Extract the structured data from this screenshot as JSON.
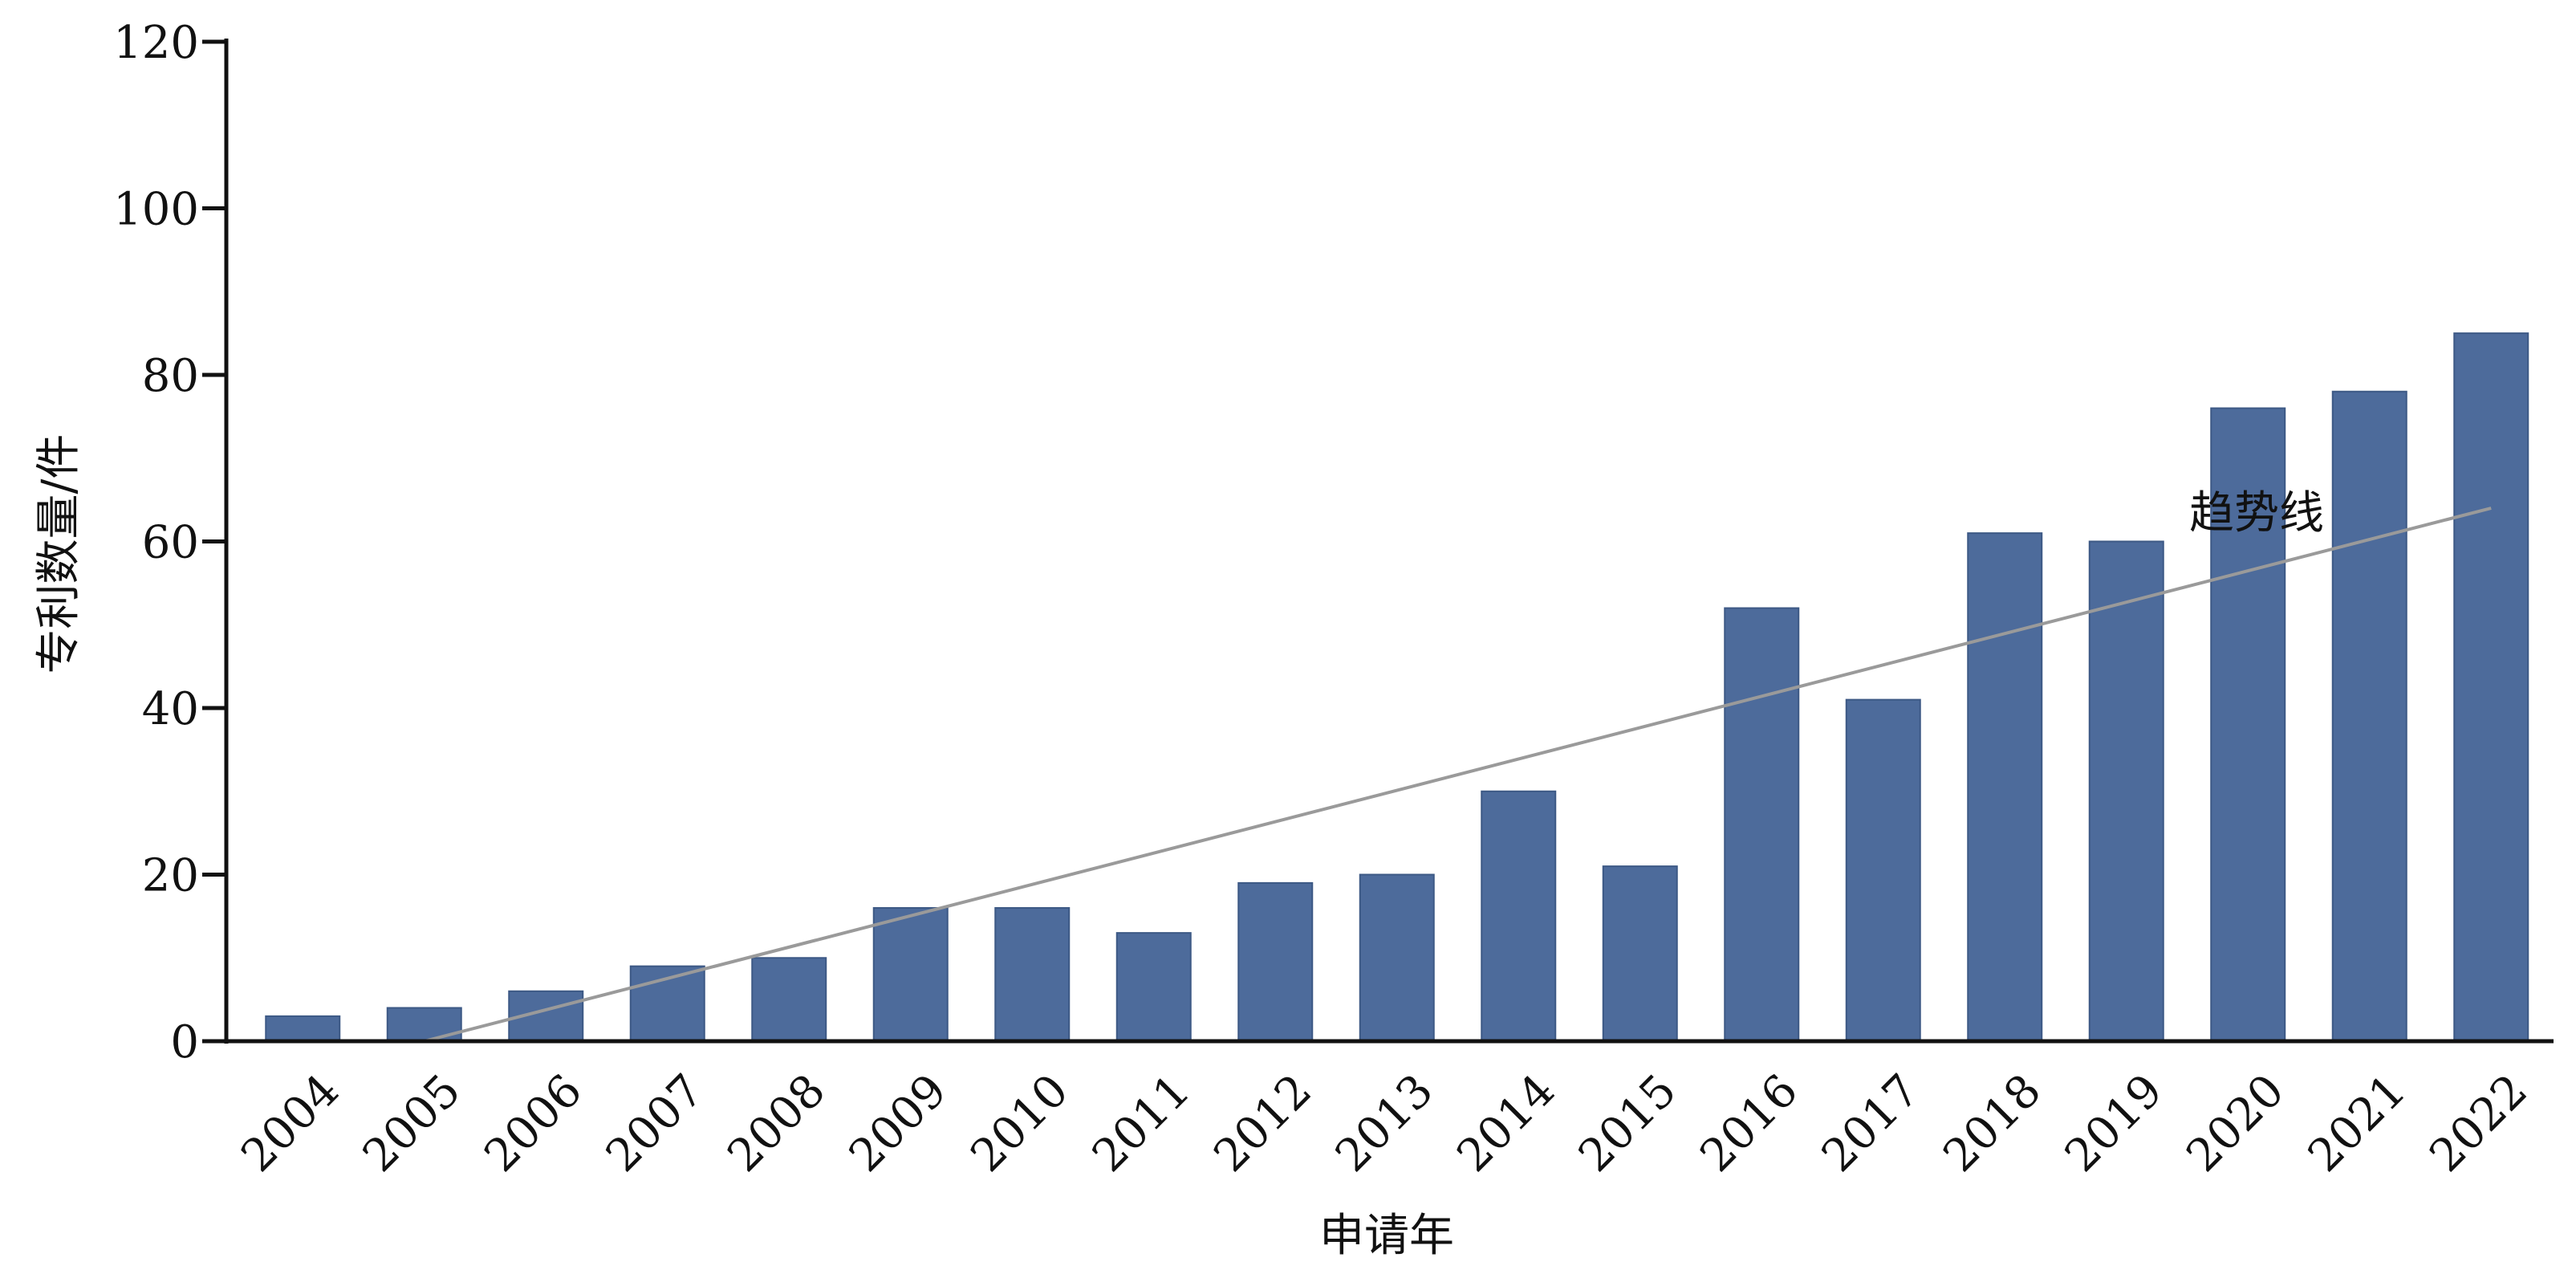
{
  "chart_data": {
    "type": "bar",
    "categories": [
      "2004",
      "2005",
      "2006",
      "2007",
      "2008",
      "2009",
      "2010",
      "2011",
      "2012",
      "2013",
      "2014",
      "2015",
      "2016",
      "2017",
      "2018",
      "2019",
      "2020",
      "2021",
      "2022"
    ],
    "series": [
      {
        "values": [
          3,
          4,
          6,
          9,
          10,
          16,
          16,
          13,
          19,
          20,
          30,
          21,
          52,
          41,
          61,
          60,
          76,
          78,
          85
        ]
      }
    ],
    "trendline": {
      "type": "linear",
      "label": "趋势线",
      "start": 0,
      "end": 64
    },
    "xlabel": "申请年",
    "ylabel": "专利数量/件",
    "ylim": [
      0,
      120
    ],
    "yticks": [
      0,
      20,
      40,
      60,
      80,
      100,
      120
    ],
    "grid": false,
    "colors": {
      "bar": "#4d6b9b",
      "trendline": "#9a9a9a",
      "axis": "#111111"
    }
  }
}
